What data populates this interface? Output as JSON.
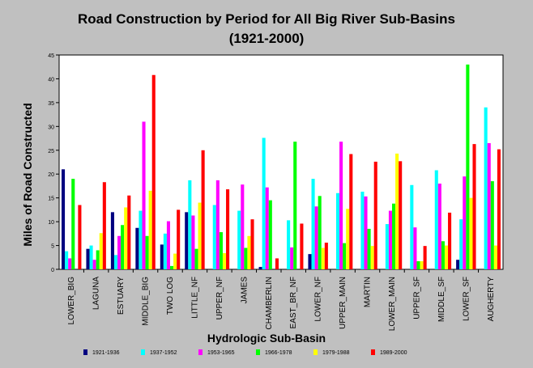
{
  "chart_data": {
    "type": "bar",
    "title": "Road Construction by Period for All Big River Sub-Basins",
    "subtitle": "(1921-2000)",
    "xlabel": "Hydrologic Sub-Basin",
    "ylabel": "Miles of Road Constructed",
    "ylim": [
      0,
      45
    ],
    "yticks": [
      0,
      5,
      10,
      15,
      20,
      25,
      30,
      35,
      40,
      45
    ],
    "grid": false,
    "legend_position": "bottom",
    "categories": [
      "LOWER_BIG",
      "LAGUNA",
      "ESTUARY",
      "MIDDLE_BIG",
      "TWO LOG",
      "LITTLE_NF",
      "UPPER_NF",
      "JAMES",
      "CHAMBERLIN",
      "EAST_BR_NF",
      "LOWER_NF",
      "UPPER_MAIN",
      "MARTIN",
      "LOWER_MAIN",
      "UPPER_SF",
      "MIDDLE_SF",
      "LOWER_SF",
      "AUGHERTY"
    ],
    "series": [
      {
        "name": "1921-1936",
        "color": "#000080",
        "values": [
          21,
          4.3,
          12,
          8.7,
          5.2,
          12,
          0,
          0,
          0.5,
          0,
          3.2,
          0,
          0,
          0,
          0,
          0,
          2,
          0
        ]
      },
      {
        "name": "1937-1952",
        "color": "#00ffff",
        "values": [
          3.8,
          5,
          3,
          12.3,
          7.5,
          18.7,
          13.5,
          12.3,
          27.6,
          10.3,
          19,
          16,
          16.3,
          9.5,
          17.7,
          20.8,
          10.5,
          34
        ]
      },
      {
        "name": "1953-1965",
        "color": "#ff00ff",
        "values": [
          2.3,
          2,
          7,
          31,
          10.1,
          11.3,
          18.7,
          17.8,
          17.2,
          4.6,
          13.2,
          26.8,
          15.3,
          12.3,
          8.8,
          18,
          19.5,
          26.5
        ]
      },
      {
        "name": "1966-1978",
        "color": "#00ff00",
        "values": [
          19,
          4,
          9.3,
          7,
          0.7,
          4.3,
          7.8,
          4.5,
          14.5,
          26.8,
          15.4,
          5.5,
          8.5,
          13.8,
          1.7,
          5.9,
          43,
          18.5
        ]
      },
      {
        "name": "1979-1988",
        "color": "#ffff00",
        "values": [
          0,
          7.6,
          13,
          16.5,
          3.3,
          14,
          3.4,
          7,
          0,
          0,
          4.5,
          12.7,
          4.9,
          24.3,
          1.7,
          5,
          15,
          5
        ]
      },
      {
        "name": "1989-2000",
        "color": "#ff0000",
        "values": [
          13.5,
          18.3,
          15.5,
          40.8,
          12.5,
          25,
          16.8,
          10.5,
          2.3,
          9.6,
          5.6,
          24.2,
          22.6,
          22.7,
          4.9,
          11.9,
          26.3,
          25.2
        ]
      }
    ]
  }
}
